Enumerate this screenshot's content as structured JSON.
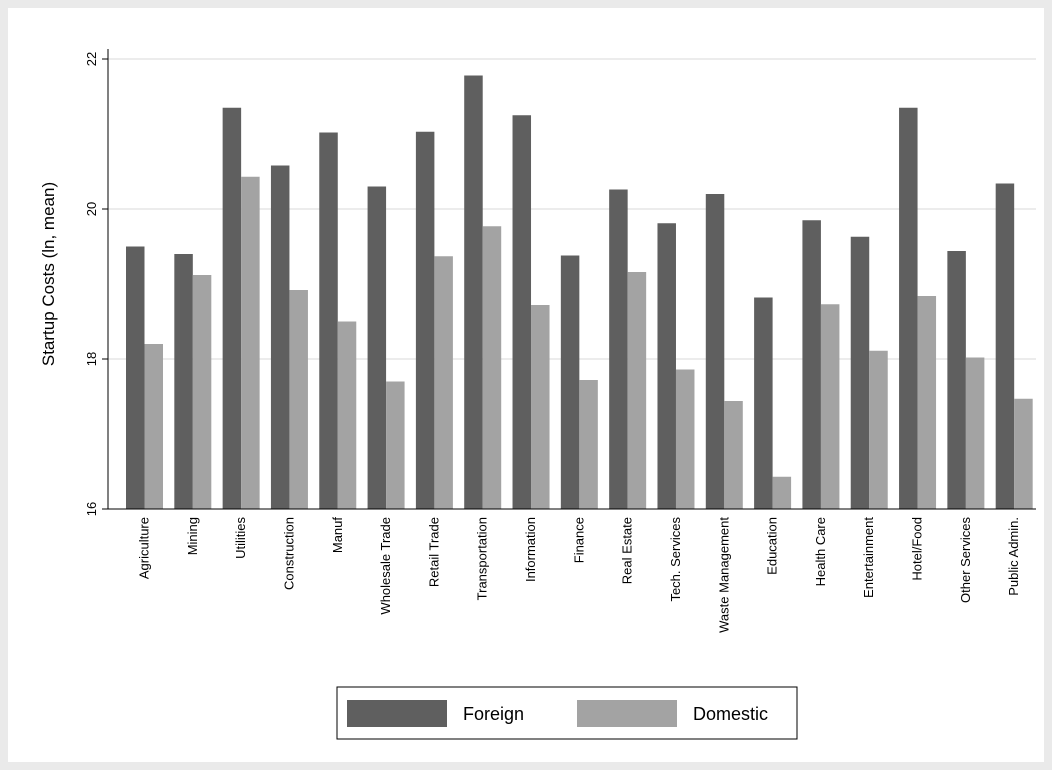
{
  "chart_data": {
    "type": "bar",
    "ylabel": "Startup Costs (ln, mean)",
    "xlabel": "",
    "ylim": [
      16,
      22
    ],
    "yticks": [
      16,
      18,
      20,
      22
    ],
    "grid": true,
    "legend_position": "bottom",
    "categories": [
      "Agriculture",
      "Mining",
      "Utilities",
      "Construction",
      "Manuf",
      "Wholesale Trade",
      "Retail Trade",
      "Transportation",
      "Information",
      "Finance",
      "Real Estate",
      "Tech. Services",
      "Waste Management",
      "Education",
      "Health Care",
      "Entertainment",
      "Hotel/Food",
      "Other Services",
      "Public Admin."
    ],
    "series": [
      {
        "name": "Foreign",
        "color": "#5f5f5f",
        "values": [
          19.5,
          19.4,
          21.35,
          20.58,
          21.02,
          20.3,
          21.03,
          21.78,
          21.25,
          19.38,
          20.26,
          19.81,
          20.2,
          18.82,
          19.85,
          19.63,
          21.35,
          19.44,
          20.34
        ]
      },
      {
        "name": "Domestic",
        "color": "#a3a3a3",
        "values": [
          18.2,
          19.12,
          20.43,
          18.92,
          18.5,
          17.7,
          19.37,
          19.77,
          18.72,
          17.72,
          19.16,
          17.86,
          17.44,
          16.43,
          18.73,
          18.11,
          18.84,
          18.02,
          17.47
        ]
      }
    ]
  }
}
